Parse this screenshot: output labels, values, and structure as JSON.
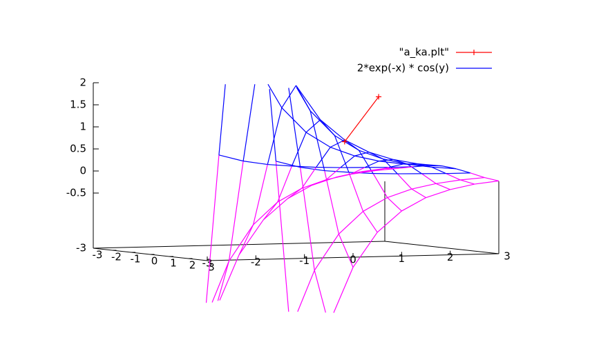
{
  "chart_data": {
    "type": "surface3d",
    "x": [
      -1,
      -0.5,
      0,
      0.5,
      1,
      1.5,
      2,
      2.5,
      3
    ],
    "y": [
      -3,
      -2.25,
      -1.5,
      -0.75,
      0,
      0.75,
      1.5,
      2.25,
      3
    ],
    "xlim": [
      -3,
      3
    ],
    "ylim": [
      -3,
      3
    ],
    "zlim": [
      -3,
      2
    ],
    "xticks": [
      -3,
      -2,
      -1,
      0,
      1,
      2,
      3
    ],
    "yticks": [
      -3,
      -2,
      -1,
      0,
      1,
      2,
      3
    ],
    "zticks": [
      -3,
      -0.5,
      0,
      0.5,
      1,
      1.5,
      2
    ],
    "series": [
      {
        "name": "\"a_ka.plt\"",
        "color": "#ff0000",
        "x": [
          1,
          1.7
        ],
        "y": [
          0,
          0
        ],
        "z": [
          0.7,
          1.7
        ]
      },
      {
        "name": "2*exp(-x) * cos(y)",
        "color": "#0000ff",
        "underside_color": "#ff00ff",
        "z": [
          [
            -5.38,
            -3.41,
            0.38,
            3.98,
            5.44,
            3.98,
            0.38,
            -3.41,
            -5.38
          ],
          [
            -3.26,
            -2.07,
            0.23,
            2.41,
            3.3,
            2.41,
            0.23,
            -2.07,
            -3.26
          ],
          [
            -1.98,
            -1.26,
            0.14,
            1.46,
            2,
            1.46,
            0.14,
            -1.26,
            -1.98
          ],
          [
            -1.2,
            -0.76,
            0.09,
            0.89,
            1.21,
            0.89,
            0.09,
            -0.76,
            -1.2
          ],
          [
            -0.73,
            -0.46,
            0.05,
            0.54,
            0.74,
            0.54,
            0.05,
            -0.46,
            -0.73
          ],
          [
            -0.44,
            -0.28,
            0.03,
            0.33,
            0.45,
            0.33,
            0.03,
            -0.28,
            -0.44
          ],
          [
            -0.27,
            -0.17,
            0.02,
            0.2,
            0.27,
            0.2,
            0.02,
            -0.17,
            -0.27
          ],
          [
            -0.16,
            -0.1,
            0.01,
            0.12,
            0.16,
            0.12,
            0.01,
            -0.1,
            -0.16
          ],
          [
            -0.1,
            -0.06,
            0.01,
            0.07,
            0.1,
            0.07,
            0.01,
            -0.06,
            -0.1
          ]
        ]
      }
    ]
  }
}
